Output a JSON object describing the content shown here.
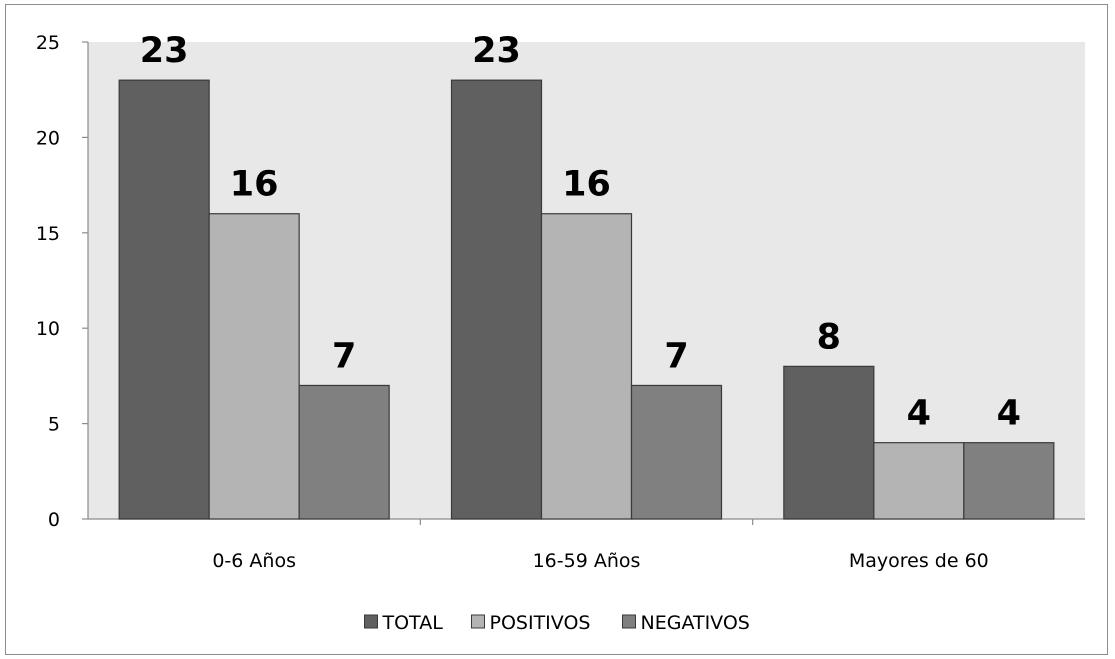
{
  "chart_data": {
    "type": "bar",
    "categories": [
      "0-6 Años",
      "16-59 Años",
      "Mayores de 60"
    ],
    "series": [
      {
        "name": "TOTAL",
        "values": [
          23,
          23,
          8
        ],
        "color": "#606060"
      },
      {
        "name": "POSITIVOS",
        "values": [
          16,
          16,
          4
        ],
        "color": "#b4b4b4"
      },
      {
        "name": "NEGATIVOS",
        "values": [
          7,
          7,
          4
        ],
        "color": "#808080"
      }
    ],
    "title": "",
    "xlabel": "",
    "ylabel": "",
    "ylim": [
      0,
      25
    ],
    "yticks": [
      0,
      5,
      10,
      15,
      20,
      25
    ],
    "plot_background": "#e8e8e8",
    "grid": false,
    "legend_position": "bottom"
  }
}
